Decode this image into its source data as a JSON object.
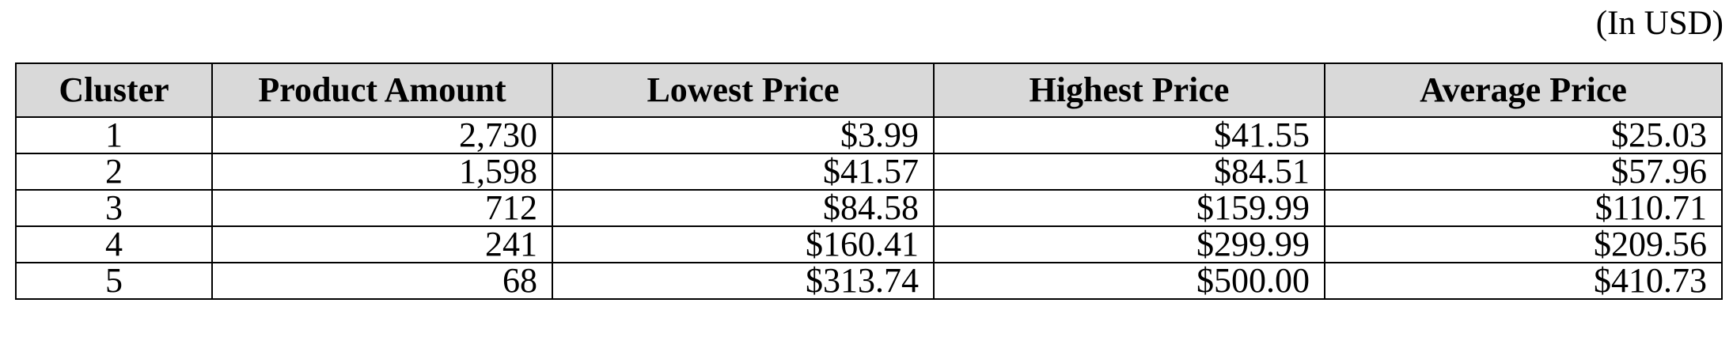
{
  "unit_note": "(In USD)",
  "table": {
    "headers": [
      "Cluster",
      "Product Amount",
      "Lowest Price",
      "Highest Price",
      "Average Price"
    ],
    "rows": [
      [
        "1",
        "2,730",
        "$3.99",
        "$41.55",
        "$25.03"
      ],
      [
        "2",
        "1,598",
        "$41.57",
        "$84.51",
        "$57.96"
      ],
      [
        "3",
        "712",
        "$84.58",
        "$159.99",
        "$110.71"
      ],
      [
        "4",
        "241",
        "$160.41",
        "$299.99",
        "$209.56"
      ],
      [
        "5",
        "68",
        "$313.74",
        "$500.00",
        "$410.73"
      ]
    ]
  },
  "colors": {
    "header_background": "#d9d9d9",
    "border": "#000000",
    "text": "#000000"
  }
}
